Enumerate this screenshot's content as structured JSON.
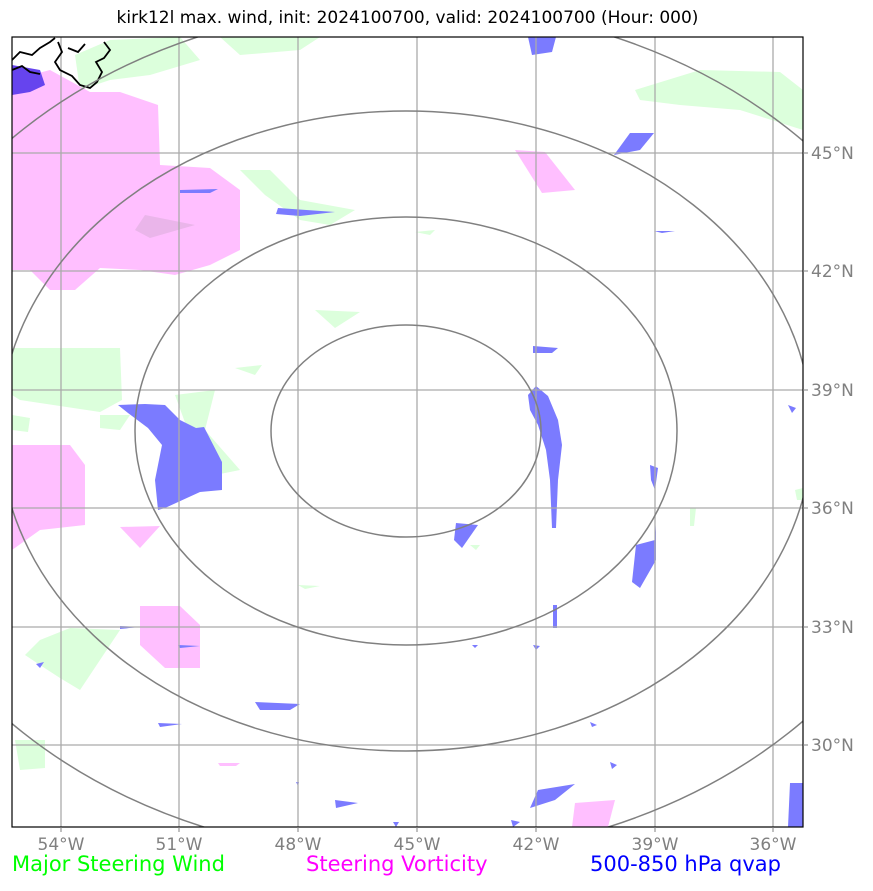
{
  "title": "kirk12l max. wind, init: 2024100700, valid: 2024100700 (Hour: 000)",
  "map": {
    "lon_ticks": [
      "54°W",
      "51°W",
      "48°W",
      "45°W",
      "42°W",
      "39°W",
      "36°W"
    ],
    "lat_ticks": [
      "45°N",
      "42°N",
      "39°N",
      "36°N",
      "33°N",
      "30°N"
    ],
    "center": {
      "lon": "45°W",
      "lat": "38°N"
    }
  },
  "legend": {
    "wind": {
      "label": "Major Steering Wind",
      "color": "#00ff00"
    },
    "vorticity": {
      "label": "Steering Vorticity",
      "color": "#ff00ff"
    },
    "qvap": {
      "label": "500-850 hPa qvap",
      "color": "#0000ff"
    }
  },
  "colors": {
    "wind_fill": "#dcffdc",
    "vorticity_fill": "#ffbfff",
    "qvap_fill": "#7b7bff",
    "grid": "#aaaaaa",
    "rings": "#808080"
  }
}
